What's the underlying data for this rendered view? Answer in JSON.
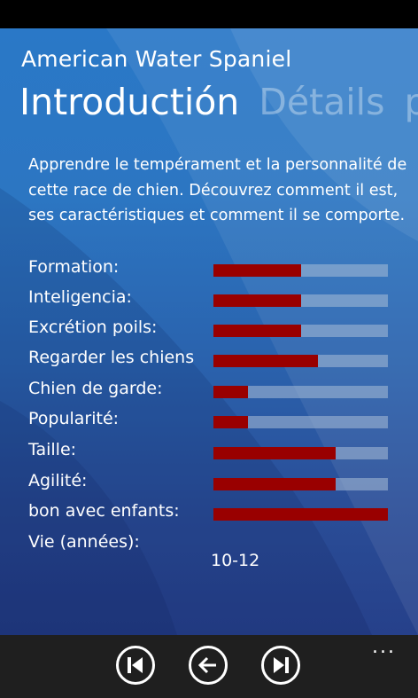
{
  "app": {
    "title": "American Water Spaniel"
  },
  "pivot": {
    "tabs": [
      "Introductión",
      "Détails",
      "pl"
    ]
  },
  "description": "Apprendre le tempérament et la personnalité de cette race de chien. Découvrez comment il est, ses caractéristiques et comment il se comporte.",
  "traits": [
    {
      "label": "Formation:",
      "value": 0.5
    },
    {
      "label": "Inteligencia:",
      "value": 0.5
    },
    {
      "label": "Excrétion poils:",
      "value": 0.5
    },
    {
      "label": "Regarder les chiens",
      "value": 0.6
    },
    {
      "label": "Chien de garde:",
      "value": 0.2
    },
    {
      "label": "Popularité:",
      "value": 0.2
    },
    {
      "label": "Taille:",
      "value": 0.7
    },
    {
      "label": "Agilité:",
      "value": 0.7
    },
    {
      "label": "bon avec enfants:",
      "value": 1.0
    }
  ],
  "lifespan": {
    "label": "Vie (années):",
    "value": "10-12"
  },
  "appbar": {
    "buttons": [
      "skip-previous-icon",
      "back-arrow-icon",
      "skip-next-icon"
    ],
    "more": "..."
  },
  "colors": {
    "bar_fill": "#990000",
    "bar_track": "#aabed7",
    "appbar": "#1f1f1f"
  }
}
